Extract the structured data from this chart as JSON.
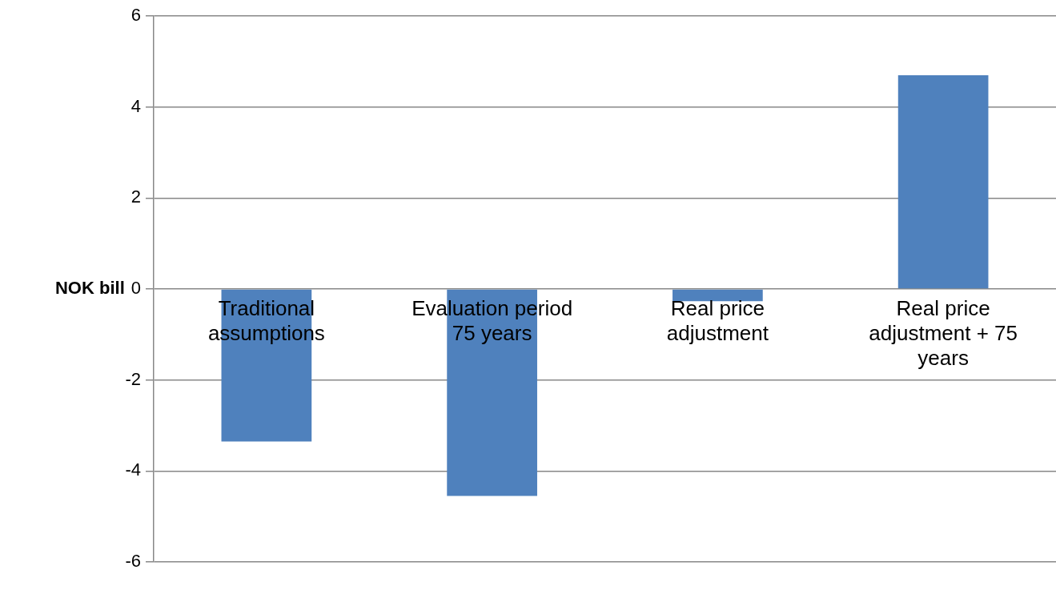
{
  "chart_data": {
    "type": "bar",
    "ylabel": "NOK bill",
    "categories": [
      "Traditional assumptions",
      "Evaluation period 75 years",
      "Real price adjustment",
      "Real price adjustment + 75 years"
    ],
    "values": [
      -3.35,
      -4.55,
      -0.27,
      4.7
    ],
    "color": "#4f81bd",
    "ylim": [
      -6,
      6
    ],
    "yticks": [
      -6,
      -4,
      -2,
      0,
      2,
      4,
      6
    ],
    "grid": "y"
  }
}
